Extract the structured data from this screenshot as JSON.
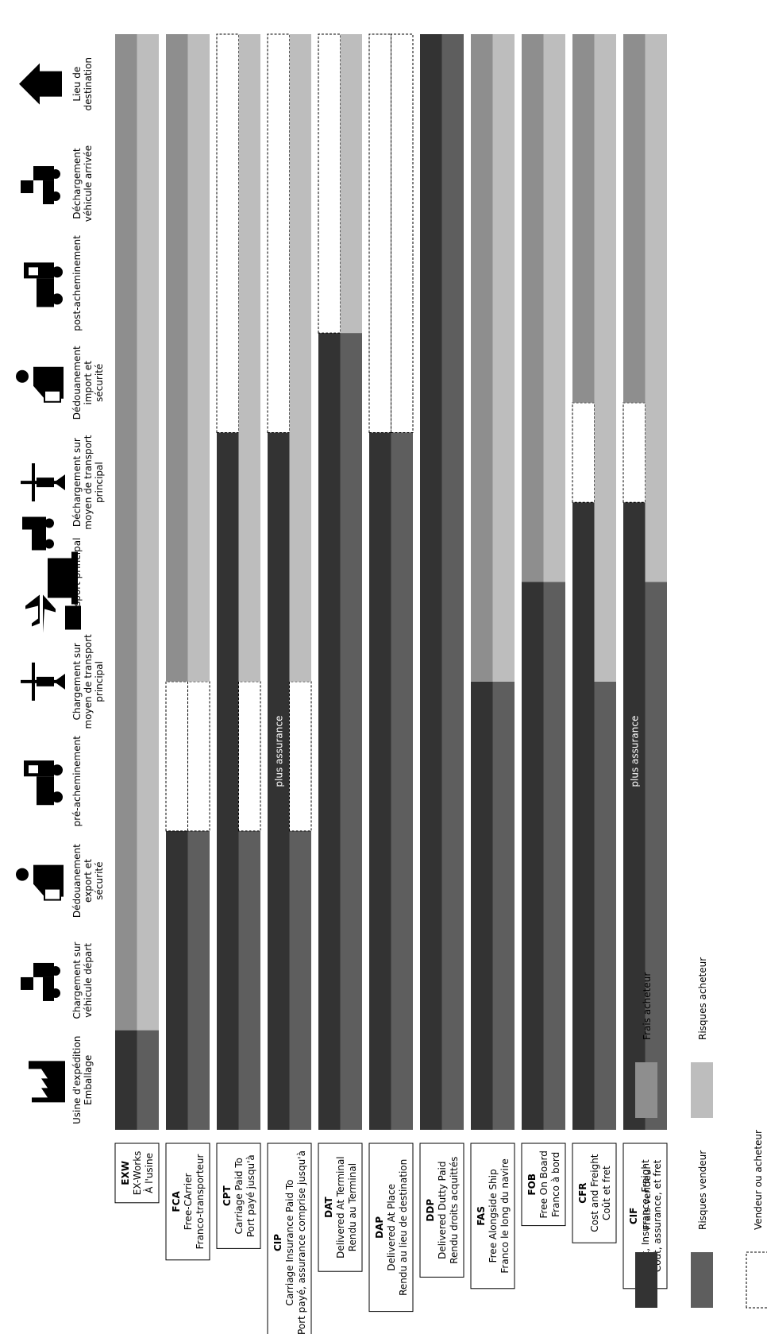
{
  "stages": [
    {
      "lines": [
        "Usine d'expédition",
        "Emballage"
      ],
      "icon": "factory-icon"
    },
    {
      "lines": [
        "Chargement sur",
        "véhicule départ"
      ],
      "icon": "truck-loading-icon"
    },
    {
      "lines": [
        "Dédouanement",
        "export et",
        "sécurité"
      ],
      "icon": "customs-officer-icon"
    },
    {
      "lines": [
        "pré-acheminement"
      ],
      "icon": "truck-icon"
    },
    {
      "lines": [
        "Chargement sur",
        "moyen de transport",
        "principal"
      ],
      "icon": "crane-icon"
    },
    {
      "lines": [
        "Transport principal"
      ],
      "icon": "plane-train-ship-truck-icon"
    },
    {
      "lines": [
        "Déchargement sur",
        "moyen de transport",
        "principal"
      ],
      "icon": "crane-icon"
    },
    {
      "lines": [
        "Dédouanement",
        "import et",
        "sécurité"
      ],
      "icon": "customs-officer-icon"
    },
    {
      "lines": [
        "post-acheminement"
      ],
      "icon": "truck-icon"
    },
    {
      "lines": [
        "Déchargement",
        "véhicule arrivée"
      ],
      "icon": "truck-unloading-icon"
    },
    {
      "lines": [
        "Lieu de",
        "destination"
      ],
      "icon": "house-icon"
    }
  ],
  "terms": [
    {
      "code": "EXW",
      "lines": [
        "EX-Works",
        "À l'usine"
      ]
    },
    {
      "code": "FCA",
      "lines": [
        "Free-CArrier",
        "Franco-transporteur"
      ]
    },
    {
      "code": "CPT",
      "lines": [
        "Carriage Paid To",
        "Port payé jusqu'à"
      ]
    },
    {
      "code": "CIP",
      "lines": [
        "Carriage Insurance Paid To",
        "Port payé, assurance comprise jusqu'à"
      ],
      "note": "plus assurance"
    },
    {
      "code": "DAT",
      "lines": [
        "Delivered At Terminal",
        "Rendu au Terminal"
      ]
    },
    {
      "code": "DAP",
      "lines": [
        "Delivered At Place",
        "Rendu au lieu de destination"
      ]
    },
    {
      "code": "DDP",
      "lines": [
        "Delivered Dutty Paid",
        "Rendu droits acquittés"
      ]
    },
    {
      "code": "FAS",
      "lines": [
        "Free Alongside Ship",
        "Franco le long du navire"
      ]
    },
    {
      "code": "FOB",
      "lines": [
        "Free On Board",
        "Franco à bord"
      ]
    },
    {
      "code": "CFR",
      "lines": [
        "Cost and Freight",
        "Coût et fret"
      ]
    },
    {
      "code": "CIF",
      "lines": [
        "Cost, Insurance, Freight",
        "Coût, assurance, et fret"
      ],
      "note": "plus assurance"
    }
  ],
  "legend": {
    "frais_vendeur": "Frais vendeur",
    "risques_vendeur": "Risques vendeur",
    "frais_acheteur": "Frais acheteur",
    "risques_acheteur": "Risques acheteur",
    "vendeur_ou_acheteur": "Vendeur ou acheteur"
  },
  "colors": {
    "frais_vendeur": "#333333",
    "risques_vendeur": "#5e5e5e",
    "frais_acheteur": "#8e8e8e",
    "risques_acheteur": "#bdbdbd",
    "vendeur_ou_acheteur": "#ffffff"
  },
  "rows": [
    {
      "frais": [
        [
          "V",
          0,
          1
        ],
        [
          "A",
          1,
          11
        ]
      ],
      "risques": [
        [
          "V",
          0,
          1
        ],
        [
          "A",
          1,
          11
        ]
      ]
    },
    {
      "frais": [
        [
          "V",
          0,
          3
        ],
        [
          "X",
          3,
          4.5
        ],
        [
          "A",
          4.5,
          11
        ]
      ],
      "risques": [
        [
          "V",
          0,
          3
        ],
        [
          "X",
          3,
          4.5
        ],
        [
          "A",
          4.5,
          11
        ]
      ]
    },
    {
      "frais": [
        [
          "V",
          0,
          7
        ],
        [
          "X",
          7,
          11
        ]
      ],
      "risques": [
        [
          "V",
          0,
          3
        ],
        [
          "X",
          3,
          4.5
        ],
        [
          "A",
          4.5,
          11
        ]
      ]
    },
    {
      "frais": [
        [
          "V",
          0,
          7
        ],
        [
          "X",
          7,
          11
        ]
      ],
      "risques": [
        [
          "V",
          0,
          3
        ],
        [
          "X",
          3,
          4.5
        ],
        [
          "A",
          4.5,
          11
        ]
      ]
    },
    {
      "frais": [
        [
          "V",
          0,
          8
        ],
        [
          "X",
          8,
          11
        ]
      ],
      "risques": [
        [
          "V",
          0,
          8
        ],
        [
          "A",
          8,
          11
        ]
      ]
    },
    {
      "frais": [
        [
          "V",
          0,
          7
        ],
        [
          "X",
          7,
          11
        ]
      ],
      "risques": [
        [
          "V",
          0,
          7
        ],
        [
          "X",
          7,
          11
        ]
      ]
    },
    {
      "frais": [
        [
          "V",
          0,
          11
        ]
      ],
      "risques": [
        [
          "V",
          0,
          11
        ]
      ]
    },
    {
      "frais": [
        [
          "V",
          0,
          4.5
        ],
        [
          "A",
          4.5,
          11
        ]
      ],
      "risques": [
        [
          "V",
          0,
          4.5
        ],
        [
          "A",
          4.5,
          11
        ]
      ]
    },
    {
      "frais": [
        [
          "V",
          0,
          5.5
        ],
        [
          "A",
          5.5,
          11
        ]
      ],
      "risques": [
        [
          "V",
          0,
          5.5
        ],
        [
          "A",
          5.5,
          11
        ]
      ]
    },
    {
      "frais": [
        [
          "V",
          0,
          6.3
        ],
        [
          "X",
          6.3,
          7.3
        ],
        [
          "A",
          7.3,
          11
        ]
      ],
      "risques": [
        [
          "V",
          0,
          4.5
        ],
        [
          "A",
          4.5,
          11
        ]
      ]
    },
    {
      "frais": [
        [
          "V",
          0,
          6.3
        ],
        [
          "X",
          6.3,
          7.3
        ],
        [
          "A",
          7.3,
          11
        ]
      ],
      "risques": [
        [
          "V",
          0,
          5.5
        ],
        [
          "A",
          5.5,
          11
        ]
      ]
    }
  ]
}
